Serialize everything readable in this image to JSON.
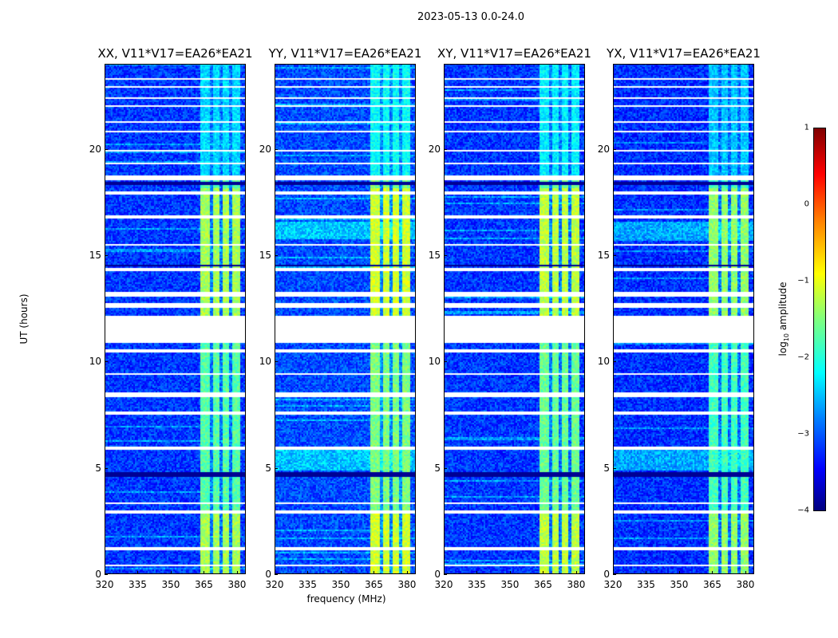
{
  "chart_data": {
    "type": "heatmap",
    "title": "2023-05-13 0.0-24.0",
    "xlabel": "frequency (MHz)",
    "ylabel": "UT (hours)",
    "xlim": [
      320,
      384
    ],
    "ylim": [
      0,
      24
    ],
    "xticks": [
      320,
      335,
      350,
      365,
      380
    ],
    "yticks": [
      0,
      5,
      10,
      15,
      20
    ],
    "panels": [
      {
        "title": "XX, V11*V17=EA26*EA21",
        "band_level": -1.7,
        "bg_level": -3.1
      },
      {
        "title": "YY, V11*V17=EA26*EA21",
        "band_level": -1.5,
        "bg_level": -3.0
      },
      {
        "title": "XY, V11*V17=EA26*EA21",
        "band_level": -1.6,
        "bg_level": -3.1
      },
      {
        "title": "YX, V11*V17=EA26*EA21",
        "band_level": -1.8,
        "bg_level": -3.15
      }
    ],
    "band_mhz": [
      363,
      381
    ],
    "flagged_hours": [
      [
        10.95,
        12.15
      ],
      [
        13.1,
        13.3
      ],
      [
        12.6,
        12.75
      ],
      [
        8.35,
        8.6
      ],
      [
        7.55,
        7.7
      ],
      [
        2.9,
        3.0
      ],
      [
        3.3,
        3.4
      ],
      [
        0.4,
        0.48
      ],
      [
        1.2,
        1.3
      ],
      [
        5.9,
        6.0
      ],
      [
        14.3,
        14.4
      ],
      [
        15.5,
        15.6
      ],
      [
        17.9,
        18.05
      ],
      [
        18.6,
        18.75
      ],
      [
        19.3,
        19.4
      ],
      [
        20.8,
        20.9
      ],
      [
        22.0,
        22.07
      ],
      [
        22.4,
        22.47
      ],
      [
        22.9,
        23.0
      ],
      [
        23.3,
        23.37
      ],
      [
        19.9,
        19.97
      ],
      [
        21.3,
        21.37
      ],
      [
        16.8,
        16.9
      ],
      [
        9.4,
        9.5
      ],
      [
        10.5,
        10.6
      ]
    ],
    "colorbar": {
      "label": "log10 amplitude",
      "range": [
        -4,
        1
      ],
      "ticks": [
        "1",
        "0",
        "−1",
        "−2",
        "−3",
        "−4"
      ],
      "tick_values": [
        1,
        0,
        -1,
        -2,
        -3,
        -4
      ]
    }
  }
}
